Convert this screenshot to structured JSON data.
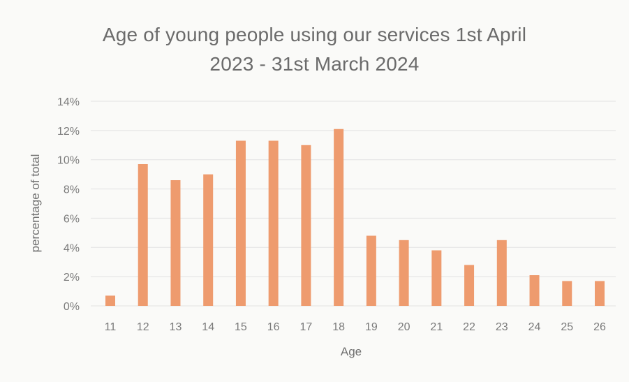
{
  "chart_data": {
    "type": "bar",
    "title_lines": [
      "Age of young people using our services 1st April",
      "2023 - 31st March 2024"
    ],
    "xlabel": "Age",
    "ylabel": "percentage of total",
    "categories": [
      "11",
      "12",
      "13",
      "14",
      "15",
      "16",
      "17",
      "18",
      "19",
      "20",
      "21",
      "22",
      "23",
      "24",
      "25",
      "26"
    ],
    "values": [
      0.7,
      9.7,
      8.6,
      9.0,
      11.3,
      11.3,
      11.0,
      12.1,
      4.8,
      4.5,
      3.8,
      2.8,
      4.5,
      2.1,
      1.7,
      1.7
    ],
    "ylim": [
      0,
      14
    ],
    "yticks": [
      0,
      2,
      4,
      6,
      8,
      10,
      12,
      14
    ],
    "ytick_labels": [
      "0%",
      "2%",
      "4%",
      "6%",
      "8%",
      "10%",
      "12%",
      "14%"
    ],
    "grid": true,
    "bar_color": "#ee9b6e",
    "legend": "none"
  }
}
